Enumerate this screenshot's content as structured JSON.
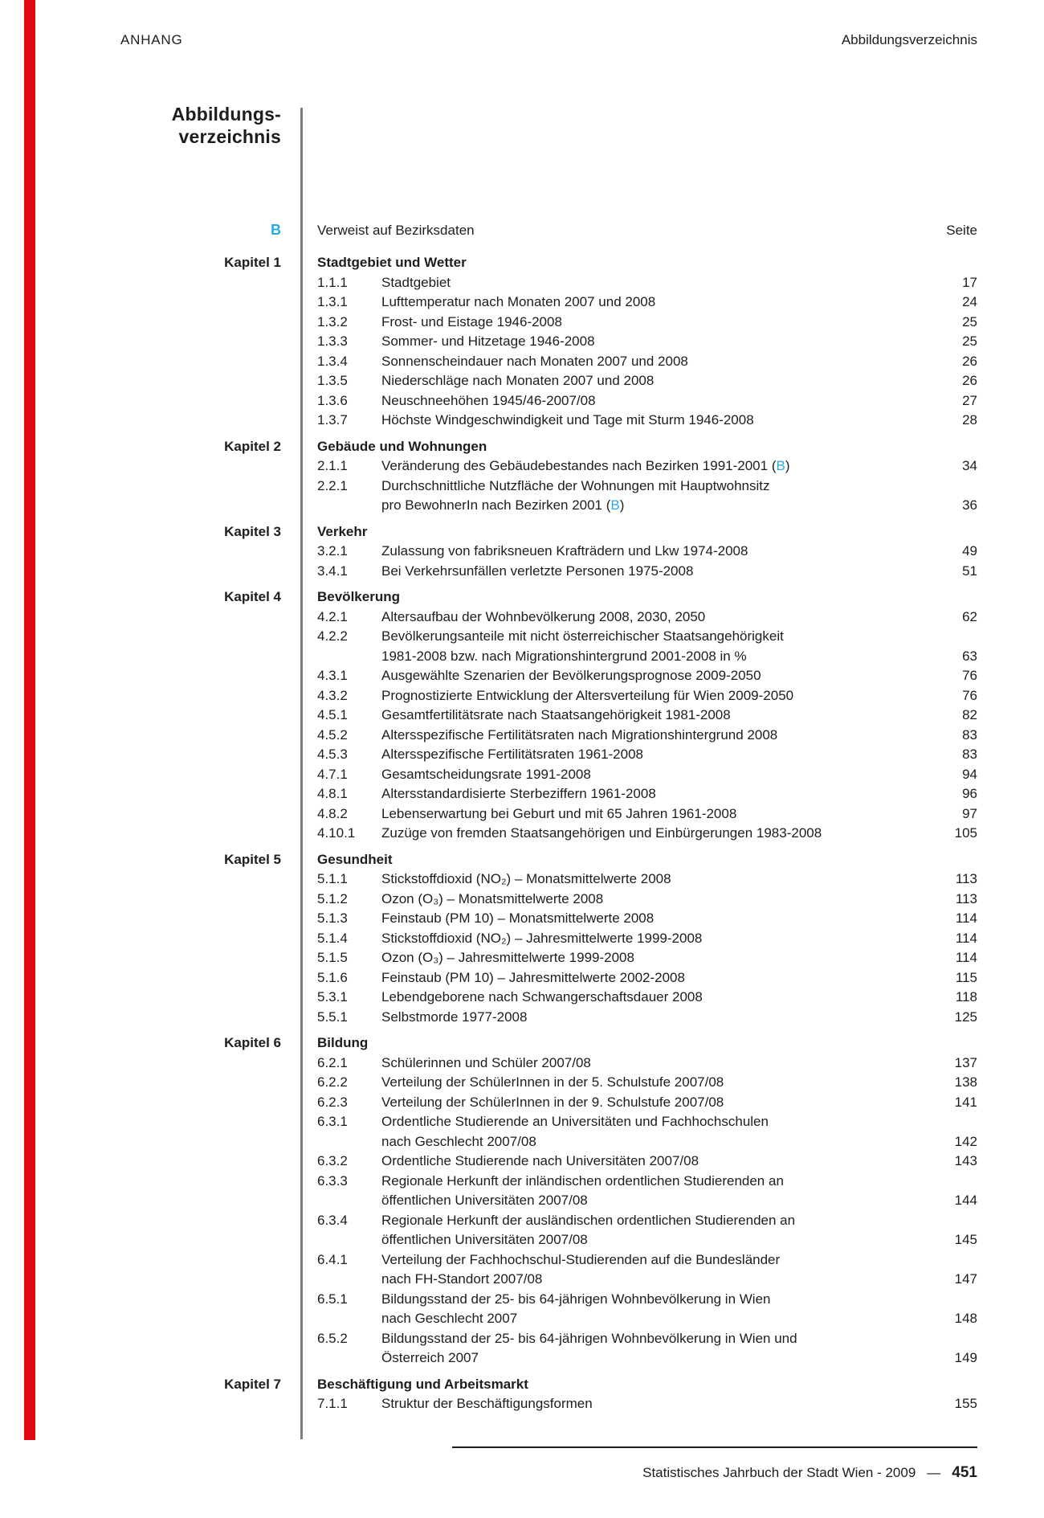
{
  "header": {
    "left": "ANHANG",
    "right": "Abbildungsverzeichnis"
  },
  "title": {
    "line1": "Abbildungs-",
    "line2": "verzeichnis"
  },
  "legend": {
    "marker": "B",
    "text": "Verweist auf Bezirksdaten",
    "page_header": "Seite"
  },
  "footer": {
    "text": "Statistisches Jahrbuch der Stadt Wien - 2009",
    "separator": "—",
    "page_number": "451"
  },
  "colors": {
    "accent_cyan": "#29abe2",
    "edge_bar_red": "#e30613",
    "divider_grey": "#7d7d7d",
    "text": "#1d1d1b"
  },
  "chapters": [
    {
      "label": "Kapitel 1",
      "title": "Stadtgebiet und Wetter",
      "entries": [
        {
          "num": "1.1.1",
          "lines": [
            "Stadtgebiet"
          ],
          "page": "17"
        },
        {
          "num": "1.3.1",
          "lines": [
            "Lufttemperatur nach Monaten 2007 und 2008"
          ],
          "page": "24"
        },
        {
          "num": "1.3.2",
          "lines": [
            "Frost- und Eistage 1946-2008"
          ],
          "page": "25"
        },
        {
          "num": "1.3.3",
          "lines": [
            "Sommer- und Hitzetage 1946-2008"
          ],
          "page": "25"
        },
        {
          "num": "1.3.4",
          "lines": [
            "Sonnenscheindauer nach Monaten 2007 und 2008"
          ],
          "page": "26"
        },
        {
          "num": "1.3.5",
          "lines": [
            "Niederschläge nach Monaten 2007 und 2008"
          ],
          "page": "26"
        },
        {
          "num": "1.3.6",
          "lines": [
            "Neuschneehöhen 1945/46-2007/08"
          ],
          "page": "27"
        },
        {
          "num": "1.3.7",
          "lines": [
            "Höchste Windgeschwindigkeit und Tage mit Sturm 1946-2008"
          ],
          "page": "28"
        }
      ]
    },
    {
      "label": "Kapitel 2",
      "title": "Gebäude und Wohnungen",
      "entries": [
        {
          "num": "2.1.1",
          "lines": [
            "Veränderung des Gebäudebestandes nach Bezirken 1991-2001 (B)"
          ],
          "page": "34"
        },
        {
          "num": "2.2.1",
          "lines": [
            "Durchschnittliche Nutzfläche der Wohnungen mit Hauptwohnsitz",
            "pro BewohnerIn nach Bezirken 2001 (B)"
          ],
          "page": "36"
        }
      ]
    },
    {
      "label": "Kapitel 3",
      "title": "Verkehr",
      "entries": [
        {
          "num": "3.2.1",
          "lines": [
            "Zulassung von fabriksneuen Krafträdern und Lkw 1974-2008"
          ],
          "page": "49"
        },
        {
          "num": "3.4.1",
          "lines": [
            "Bei Verkehrsunfällen verletzte Personen 1975-2008"
          ],
          "page": "51"
        }
      ]
    },
    {
      "label": "Kapitel 4",
      "title": "Bevölkerung",
      "entries": [
        {
          "num": "4.2.1",
          "lines": [
            "Altersaufbau der Wohnbevölkerung 2008, 2030, 2050"
          ],
          "page": "62"
        },
        {
          "num": "4.2.2",
          "lines": [
            "Bevölkerungsanteile mit nicht österreichischer Staatsangehörigkeit",
            "1981-2008 bzw. nach Migrationshintergrund 2001-2008 in %"
          ],
          "page": "63"
        },
        {
          "num": "4.3.1",
          "lines": [
            "Ausgewählte Szenarien der Bevölkerungsprognose 2009-2050"
          ],
          "page": "76"
        },
        {
          "num": "4.3.2",
          "lines": [
            "Prognostizierte Entwicklung der Altersverteilung für Wien 2009-2050"
          ],
          "page": "76"
        },
        {
          "num": "4.5.1",
          "lines": [
            "Gesamtfertilitätsrate nach Staatsangehörigkeit 1981-2008"
          ],
          "page": "82"
        },
        {
          "num": "4.5.2",
          "lines": [
            "Altersspezifische Fertilitätsraten nach Migrationshintergrund 2008"
          ],
          "page": "83"
        },
        {
          "num": "4.5.3",
          "lines": [
            "Altersspezifische Fertilitätsraten 1961-2008"
          ],
          "page": "83"
        },
        {
          "num": "4.7.1",
          "lines": [
            "Gesamtscheidungsrate 1991-2008"
          ],
          "page": "94"
        },
        {
          "num": "4.8.1",
          "lines": [
            "Altersstandardisierte Sterbeziffern 1961-2008"
          ],
          "page": "96"
        },
        {
          "num": "4.8.2",
          "lines": [
            "Lebenserwartung bei Geburt und mit 65 Jahren 1961-2008"
          ],
          "page": "97"
        },
        {
          "num": "4.10.1",
          "lines": [
            "Zuzüge von fremden Staatsangehörigen und Einbürgerungen 1983-2008"
          ],
          "page": "105"
        }
      ]
    },
    {
      "label": "Kapitel 5",
      "title": "Gesundheit",
      "entries": [
        {
          "num": "5.1.1",
          "lines": [
            "Stickstoffdioxid (NO₂) – Monatsmittelwerte 2008"
          ],
          "page": "113"
        },
        {
          "num": "5.1.2",
          "lines": [
            "Ozon (O₃) – Monatsmittelwerte 2008"
          ],
          "page": "113"
        },
        {
          "num": "5.1.3",
          "lines": [
            "Feinstaub (PM 10) – Monatsmittelwerte 2008"
          ],
          "page": "114"
        },
        {
          "num": "5.1.4",
          "lines": [
            "Stickstoffdioxid (NO₂) – Jahresmittelwerte 1999-2008"
          ],
          "page": "114"
        },
        {
          "num": "5.1.5",
          "lines": [
            "Ozon (O₃) – Jahresmittelwerte 1999-2008"
          ],
          "page": "114"
        },
        {
          "num": "5.1.6",
          "lines": [
            "Feinstaub (PM 10) – Jahresmittelwerte 2002-2008"
          ],
          "page": "115"
        },
        {
          "num": "5.3.1",
          "lines": [
            "Lebendgeborene nach Schwangerschaftsdauer 2008"
          ],
          "page": "118"
        },
        {
          "num": "5.5.1",
          "lines": [
            "Selbstmorde 1977-2008"
          ],
          "page": "125"
        }
      ]
    },
    {
      "label": "Kapitel 6",
      "title": "Bildung",
      "entries": [
        {
          "num": "6.2.1",
          "lines": [
            "Schülerinnen und Schüler 2007/08"
          ],
          "page": "137"
        },
        {
          "num": "6.2.2",
          "lines": [
            "Verteilung der SchülerInnen in der 5. Schulstufe 2007/08"
          ],
          "page": "138"
        },
        {
          "num": "6.2.3",
          "lines": [
            "Verteilung der SchülerInnen in der 9. Schulstufe 2007/08"
          ],
          "page": "141"
        },
        {
          "num": "6.3.1",
          "lines": [
            "Ordentliche Studierende an Universitäten und Fachhochschulen",
            "nach Geschlecht 2007/08"
          ],
          "page": "142"
        },
        {
          "num": "6.3.2",
          "lines": [
            "Ordentliche Studierende nach Universitäten 2007/08"
          ],
          "page": "143"
        },
        {
          "num": "6.3.3",
          "lines": [
            "Regionale Herkunft der inländischen ordentlichen Studierenden an",
            "öffentlichen Universitäten 2007/08"
          ],
          "page": "144"
        },
        {
          "num": "6.3.4",
          "lines": [
            "Regionale Herkunft der ausländischen ordentlichen Studierenden an",
            "öffentlichen Universitäten 2007/08"
          ],
          "page": "145"
        },
        {
          "num": "6.4.1",
          "lines": [
            "Verteilung der Fachhochschul-Studierenden auf die Bundesländer",
            "nach FH-Standort 2007/08"
          ],
          "page": "147"
        },
        {
          "num": "6.5.1",
          "lines": [
            "Bildungsstand der 25- bis 64-jährigen Wohnbevölkerung in Wien",
            "nach Geschlecht 2007"
          ],
          "page": "148"
        },
        {
          "num": "6.5.2",
          "lines": [
            "Bildungsstand der 25- bis 64-jährigen Wohnbevölkerung in Wien und",
            "Österreich 2007"
          ],
          "page": "149"
        }
      ]
    },
    {
      "label": "Kapitel 7",
      "title": "Beschäftigung und Arbeitsmarkt",
      "entries": [
        {
          "num": "7.1.1",
          "lines": [
            "Struktur der Beschäftigungsformen"
          ],
          "page": "155"
        }
      ]
    }
  ]
}
